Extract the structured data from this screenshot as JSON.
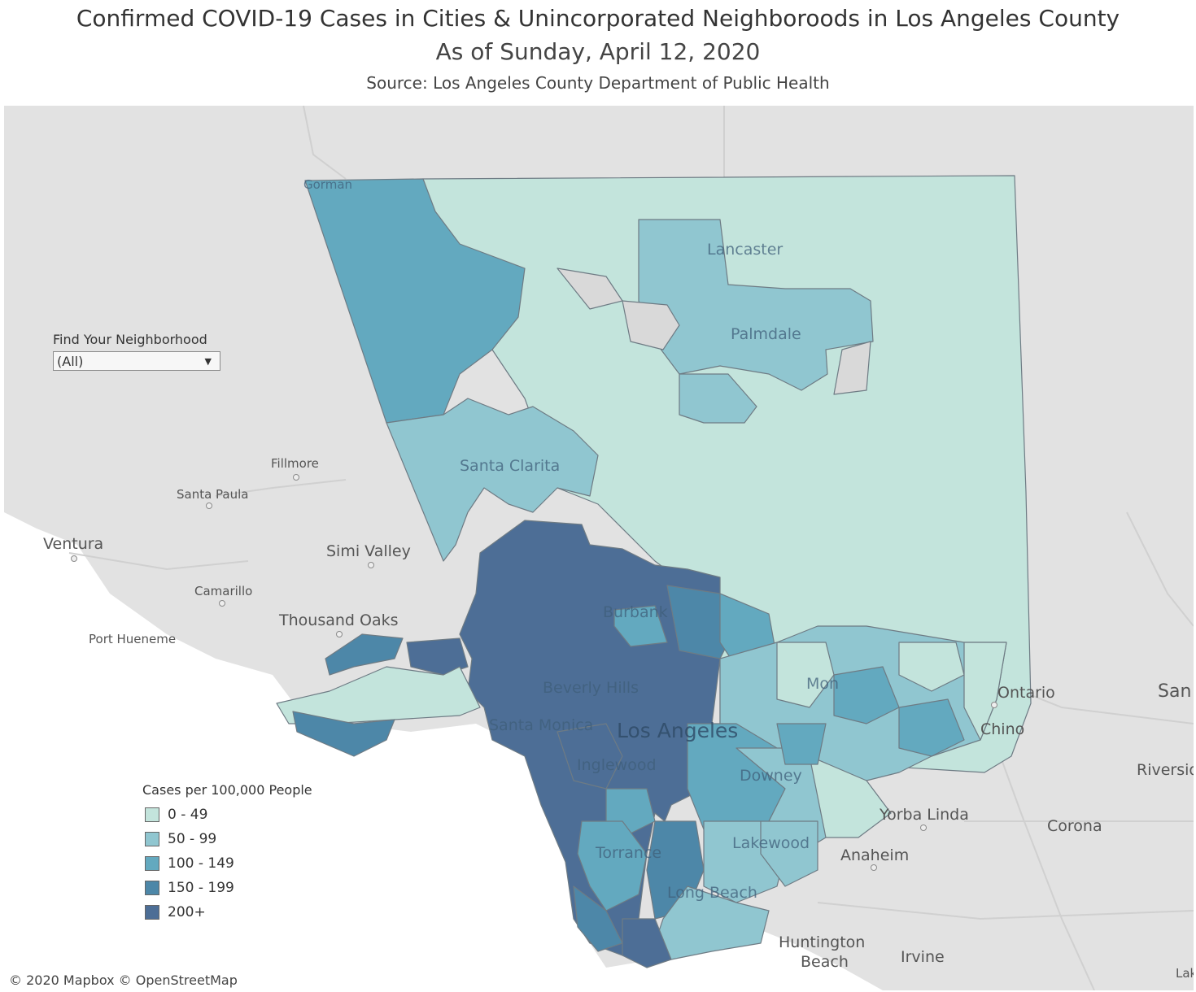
{
  "header": {
    "title": "Confirmed COVID-19 Cases in Cities & Unincorporated Neighboroods in Los Angeles County",
    "subtitle": "As of Sunday, April 12, 2020",
    "source": "Source: Los Angeles County Department of Public Health"
  },
  "filter": {
    "label": "Find Your Neighborhood",
    "value": "(All)",
    "icon": "dropdown-arrow-icon"
  },
  "legend": {
    "title": "Cases per 100,000 People",
    "items": [
      {
        "label": "0 - 49",
        "color": "#c3e4dc"
      },
      {
        "label": "50 - 99",
        "color": "#90c6d0"
      },
      {
        "label": "100 - 149",
        "color": "#63a9bf"
      },
      {
        "label": "150 - 199",
        "color": "#4d87a8"
      },
      {
        "label": "200+",
        "color": "#4d6e96"
      }
    ]
  },
  "attribution": "© 2020 Mapbox © OpenStreetMap",
  "places": {
    "gorman": "Gorman",
    "lancaster": "Lancaster",
    "palmdale": "Palmdale",
    "fillmore": "Fillmore",
    "santa_paula": "Santa Paula",
    "santa_clarita": "Santa Clarita",
    "ventura": "Ventura",
    "simi_valley": "Simi Valley",
    "camarillo": "Camarillo",
    "thousand_oaks": "Thousand Oaks",
    "port_hueneme": "Port Hueneme",
    "burbank": "Burbank",
    "beverly_hills": "Beverly Hills",
    "santa_monica": "Santa Monica",
    "los_angeles": "Los Angeles",
    "inglewood": "Inglewood",
    "downey": "Downey",
    "torrance": "Torrance",
    "lakewood": "Lakewood",
    "long_beach": "Long Beach",
    "ontario": "Ontario",
    "chino": "Chino",
    "san": "San",
    "riverside": "Riversid",
    "yorba_linda": "Yorba Linda",
    "corona": "Corona",
    "anaheim": "Anaheim",
    "huntington_beach_1": "Huntington",
    "huntington_beach_2": "Beach",
    "irvine": "Irvine",
    "lake": "Lak",
    "elmonte": "Mon"
  }
}
